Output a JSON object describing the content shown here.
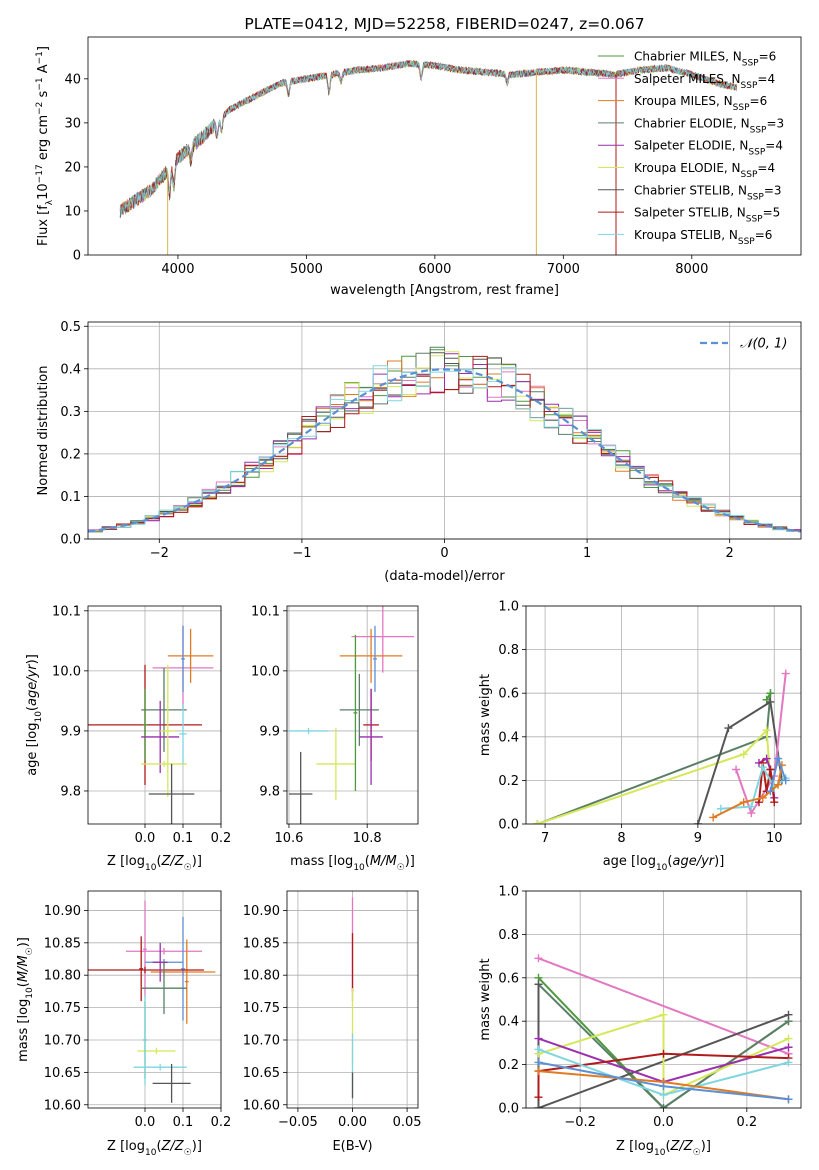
{
  "chart_data": [
    {
      "id": "spectrum",
      "type": "line",
      "title": "PLATE=0412, MJD=52258, FIBERID=0247, z=0.067",
      "xlabel": "wavelength [Angstrom, rest frame]",
      "ylabel": "Flux [f_λ10^-17 erg cm^-2 s^-1 A^-1]",
      "xlim": [
        3300,
        8850
      ],
      "ylim": [
        0,
        49.5
      ],
      "xticks": [
        4000,
        5000,
        6000,
        7000,
        8000
      ],
      "yticks": [
        0,
        10,
        20,
        30,
        40
      ],
      "grid": false,
      "legend_position": "top-right",
      "continuum_x": [
        3550,
        3800,
        4000,
        4200,
        4400,
        4600,
        4800,
        5000,
        5200,
        5400,
        5600,
        5800,
        6000,
        6200,
        6400,
        6600,
        6800,
        7000,
        7200,
        7400,
        7600,
        7800,
        8000,
        8200,
        8350
      ],
      "continuum_y": [
        10,
        15,
        22,
        27,
        33,
        36,
        39,
        40,
        41,
        42,
        42.5,
        43.5,
        43,
        42,
        41.5,
        41,
        41.5,
        42,
        41.5,
        41,
        42,
        42.5,
        41,
        39,
        38
      ],
      "series": [
        {
          "name": "Chabrier MILES, N_SSP=6",
          "label_main": "Chabrier MILES, N",
          "label_sub": "SSP",
          "label_tail": "=6",
          "color": "#4c9a3c"
        },
        {
          "name": "Salpeter MILES, N_SSP=4",
          "label_main": "Salpeter MILES, N",
          "label_sub": "SSP",
          "label_tail": "=4",
          "color": "#e377c2"
        },
        {
          "name": "Kroupa MILES, N_SSP=6",
          "label_main": "Kroupa MILES, N",
          "label_sub": "SSP",
          "label_tail": "=6",
          "color": "#e07b22"
        },
        {
          "name": "Chabrier ELODIE, N_SSP=3",
          "label_main": "Chabrier ELODIE, N",
          "label_sub": "SSP",
          "label_tail": "=3",
          "color": "#5b7f66"
        },
        {
          "name": "Salpeter ELODIE, N_SSP=4",
          "label_main": "Salpeter ELODIE, N",
          "label_sub": "SSP",
          "label_tail": "=4",
          "color": "#9b2fae"
        },
        {
          "name": "Kroupa ELODIE, N_SSP=4",
          "label_main": "Kroupa ELODIE, N",
          "label_sub": "SSP",
          "label_tail": "=4",
          "color": "#d4e85a"
        },
        {
          "name": "Chabrier STELIB, N_SSP=3",
          "label_main": "Chabrier STELIB, N",
          "label_sub": "SSP",
          "label_tail": "=3",
          "color": "#555555"
        },
        {
          "name": "Salpeter STELIB, N_SSP=5",
          "label_main": "Salpeter STELIB, N",
          "label_sub": "SSP",
          "label_tail": "=5",
          "color": "#b01a1a"
        },
        {
          "name": "Kroupa STELIB, N_SSP=6",
          "label_main": "Kroupa STELIB, N",
          "label_sub": "SSP",
          "label_tail": "=6",
          "color": "#7fd6e0"
        }
      ],
      "drops": [
        {
          "x": 3920,
          "color": "#d4b84a"
        },
        {
          "x": 6790,
          "color": "#d4b84a"
        },
        {
          "x": 7410,
          "color": "#b01a1a"
        }
      ]
    },
    {
      "id": "residuals",
      "type": "histogram",
      "xlabel": "(data-model)/error",
      "ylabel": "Normed distribution",
      "xlim": [
        -2.5,
        2.5
      ],
      "ylim": [
        0,
        0.51
      ],
      "xticks": [
        -2,
        -1,
        0,
        1,
        2
      ],
      "yticks": [
        0.0,
        0.1,
        0.2,
        0.3,
        0.4,
        0.5
      ],
      "grid": true,
      "legend_position": "top-right",
      "gaussian_label": "𝒩(0, 1)",
      "gaussian_color": "#5b8fd6",
      "bin_width": 0.1,
      "series_colors": [
        "#4c9a3c",
        "#e377c2",
        "#e07b22",
        "#5b7f66",
        "#9b2fae",
        "#d4e85a",
        "#555555",
        "#b01a1a",
        "#7fd6e0"
      ]
    },
    {
      "id": "age-vs-Z",
      "type": "errorbar",
      "xlabel": "Z [log10(Z/Z☉)]",
      "ylabel": "age [log10(age/yr)]",
      "xlim": [
        -0.15,
        0.2
      ],
      "ylim": [
        9.745,
        10.108
      ],
      "xticks": [
        0.0,
        0.1,
        0.2
      ],
      "yticks": [
        9.8,
        9.9,
        10.0,
        10.1
      ],
      "grid": true,
      "points": [
        {
          "x": 0.1,
          "y": 10.005,
          "xerr": 0.08,
          "yerr": 0.07,
          "color": "#e377c2"
        },
        {
          "x": 0.12,
          "y": 10.025,
          "xerr": 0.06,
          "yerr": 0.045,
          "color": "#e07b22"
        },
        {
          "x": 0.1,
          "y": 10.02,
          "xerr": 0.005,
          "yerr": 0.055,
          "color": "#5b8fd6"
        },
        {
          "x": 0.05,
          "y": 9.935,
          "xerr": 0.06,
          "yerr": 0.07,
          "color": "#5b7f66"
        },
        {
          "x": 0.0,
          "y": 9.91,
          "xerr": 0.15,
          "yerr": 0.1,
          "color": "#b01a1a"
        },
        {
          "x": 0.0,
          "y": 9.91,
          "xerr": 0.005,
          "yerr": 0.06,
          "color": "#4c9a3c"
        },
        {
          "x": 0.04,
          "y": 9.89,
          "xerr": 0.05,
          "yerr": 0.06,
          "color": "#9b2fae"
        },
        {
          "x": 0.06,
          "y": 9.9,
          "xerr": 0.02,
          "yerr": 0.11,
          "color": "#d4e85a"
        },
        {
          "x": 0.05,
          "y": 9.845,
          "xerr": 0.06,
          "yerr": 0.005,
          "color": "#d4e85a"
        },
        {
          "x": 0.07,
          "y": 9.795,
          "xerr": 0.06,
          "yerr": 0.05,
          "color": "#555555"
        },
        {
          "x": 0.1,
          "y": 9.895,
          "xerr": 0.01,
          "yerr": 0.05,
          "color": "#7fd6e0"
        }
      ]
    },
    {
      "id": "age-vs-mass",
      "type": "errorbar",
      "xlabel": "mass [log10(M/M☉)]",
      "xlim": [
        10.595,
        10.93
      ],
      "ylim": [
        9.745,
        10.108
      ],
      "xticks": [
        10.6,
        10.8
      ],
      "yticks": [
        9.8,
        9.9,
        10.0,
        10.1
      ],
      "grid": true,
      "points": [
        {
          "x": 10.84,
          "y": 10.057,
          "xerr": 0.08,
          "yerr": 0.06,
          "color": "#e377c2"
        },
        {
          "x": 10.81,
          "y": 10.025,
          "xerr": 0.08,
          "yerr": 0.045,
          "color": "#e07b22"
        },
        {
          "x": 10.82,
          "y": 10.02,
          "xerr": 0.005,
          "yerr": 0.055,
          "color": "#5b8fd6"
        },
        {
          "x": 10.78,
          "y": 9.935,
          "xerr": 0.05,
          "yerr": 0.06,
          "color": "#5b7f66"
        },
        {
          "x": 10.81,
          "y": 9.91,
          "xerr": 0.02,
          "yerr": 0.06,
          "color": "#b01a1a"
        },
        {
          "x": 10.81,
          "y": 9.89,
          "xerr": 0.03,
          "yerr": 0.08,
          "color": "#9b2fae"
        },
        {
          "x": 10.72,
          "y": 9.845,
          "xerr": 0.05,
          "yerr": 0.06,
          "color": "#d4e85a"
        },
        {
          "x": 10.65,
          "y": 9.9,
          "xerr": 0.05,
          "yerr": 0.005,
          "color": "#7fd6e0"
        },
        {
          "x": 10.63,
          "y": 9.795,
          "xerr": 0.03,
          "yerr": 0.07,
          "color": "#555555"
        },
        {
          "x": 10.77,
          "y": 9.93,
          "xerr": 0.005,
          "yerr": 0.13,
          "color": "#4c9a3c"
        }
      ]
    },
    {
      "id": "weight-vs-age",
      "type": "line",
      "xlabel": "age [log10(age/yr)]",
      "ylabel": "mass weight",
      "xlim": [
        6.75,
        10.35
      ],
      "ylim": [
        0,
        1.0
      ],
      "xticks": [
        7,
        8,
        9,
        10
      ],
      "yticks": [
        0.0,
        0.2,
        0.4,
        0.6,
        0.8,
        1.0
      ],
      "grid": true,
      "series": [
        {
          "color": "#5b7f66",
          "x": [
            6.9,
            9.9,
            9.95
          ],
          "y": [
            0.0,
            0.4,
            0.6
          ]
        },
        {
          "color": "#4c9a3c",
          "x": [
            9.9,
            9.95
          ],
          "y": [
            0.57,
            0.6
          ]
        },
        {
          "color": "#d4e85a",
          "x": [
            6.9,
            9.6,
            9.9,
            9.95
          ],
          "y": [
            0.0,
            0.32,
            0.43,
            0.2
          ]
        },
        {
          "color": "#555555",
          "x": [
            9.0,
            9.4,
            9.95,
            10.1
          ],
          "y": [
            0.0,
            0.44,
            0.56,
            0.2
          ]
        },
        {
          "color": "#e377c2",
          "x": [
            9.5,
            9.7,
            10.0,
            10.15
          ],
          "y": [
            0.25,
            0.05,
            0.22,
            0.69
          ]
        },
        {
          "color": "#9b2fae",
          "x": [
            9.8,
            9.9,
            9.95,
            10.0
          ],
          "y": [
            0.28,
            0.3,
            0.25,
            0.12
          ]
        },
        {
          "color": "#b01a1a",
          "x": [
            9.8,
            9.85,
            9.9,
            9.95,
            10.0
          ],
          "y": [
            0.1,
            0.28,
            0.15,
            0.25,
            0.1
          ]
        },
        {
          "color": "#7fd6e0",
          "x": [
            9.3,
            9.7,
            9.85,
            10.0,
            10.15
          ],
          "y": [
            0.07,
            0.08,
            0.26,
            0.17,
            0.21
          ]
        },
        {
          "color": "#e07b22",
          "x": [
            9.2,
            9.6,
            9.85,
            10.05,
            10.1
          ],
          "y": [
            0.03,
            0.1,
            0.12,
            0.18,
            0.27
          ]
        },
        {
          "color": "#5b8fd6",
          "x": [
            9.95,
            10.05,
            10.15
          ],
          "y": [
            0.15,
            0.3,
            0.2
          ]
        }
      ]
    },
    {
      "id": "mass-vs-Z",
      "type": "errorbar",
      "xlabel": "Z [log10(Z/Z☉)]",
      "ylabel": "mass [log10(M/M☉)]",
      "xlim": [
        -0.15,
        0.2
      ],
      "ylim": [
        10.595,
        10.93
      ],
      "xticks": [
        0.0,
        0.1,
        0.2
      ],
      "yticks": [
        10.6,
        10.65,
        10.7,
        10.75,
        10.8,
        10.85,
        10.9
      ],
      "grid": true,
      "points": [
        {
          "x": 0.05,
          "y": 10.837,
          "xerr": 0.1,
          "yerr": 0.005,
          "color": "#e377c2"
        },
        {
          "x": 0.0,
          "y": 10.84,
          "xerr": 0.005,
          "yerr": 0.075,
          "color": "#e377c2"
        },
        {
          "x": 0.1,
          "y": 10.805,
          "xerr": 0.085,
          "yerr": 0.005,
          "color": "#e07b22"
        },
        {
          "x": 0.11,
          "y": 10.79,
          "xerr": 0.005,
          "yerr": 0.065,
          "color": "#e07b22"
        },
        {
          "x": 0.05,
          "y": 10.82,
          "xerr": 0.05,
          "yerr": 0.005,
          "color": "#5b8fd6"
        },
        {
          "x": 0.1,
          "y": 10.81,
          "xerr": 0.005,
          "yerr": 0.08,
          "color": "#5b8fd6"
        },
        {
          "x": 0.0,
          "y": 10.808,
          "xerr": 0.155,
          "yerr": 0.005,
          "color": "#b01a1a"
        },
        {
          "x": -0.01,
          "y": 10.81,
          "xerr": 0.005,
          "yerr": 0.05,
          "color": "#b01a1a"
        },
        {
          "x": 0.05,
          "y": 10.78,
          "xerr": 0.06,
          "yerr": 0.04,
          "color": "#5b7f66"
        },
        {
          "x": 0.04,
          "y": 10.82,
          "xerr": 0.02,
          "yerr": 0.03,
          "color": "#9b2fae"
        },
        {
          "x": 0.03,
          "y": 10.683,
          "xerr": 0.05,
          "yerr": 0.005,
          "color": "#d4e85a"
        },
        {
          "x": 0.0,
          "y": 10.7,
          "xerr": 0.005,
          "yerr": 0.06,
          "color": "#4c9a3c"
        },
        {
          "x": 0.04,
          "y": 10.658,
          "xerr": 0.07,
          "yerr": 0.005,
          "color": "#7fd6e0"
        },
        {
          "x": 0.0,
          "y": 10.7,
          "xerr": 0.005,
          "yerr": 0.07,
          "color": "#7fd6e0"
        },
        {
          "x": 0.07,
          "y": 10.633,
          "xerr": 0.05,
          "yerr": 0.03,
          "color": "#555555"
        }
      ]
    },
    {
      "id": "mass-vs-ebv",
      "type": "errorbar",
      "xlabel": "E(B-V)",
      "xlim": [
        -0.06,
        0.06
      ],
      "ylim": [
        10.595,
        10.93
      ],
      "xticks": [
        -0.05,
        0.0,
        0.05
      ],
      "yticks": [
        10.6,
        10.65,
        10.7,
        10.75,
        10.8,
        10.85,
        10.9
      ],
      "grid": true,
      "points": [
        {
          "x": 0.0,
          "y": 10.84,
          "xerr": 0.0,
          "yerr": 0.08,
          "color": "#e377c2"
        },
        {
          "x": 0.0,
          "y": 10.82,
          "xerr": 0.0,
          "yerr": 0.045,
          "color": "#b01a1a"
        },
        {
          "x": 0.0,
          "y": 10.72,
          "xerr": 0.0,
          "yerr": 0.06,
          "color": "#d4e85a"
        },
        {
          "x": 0.0,
          "y": 10.66,
          "xerr": 0.0,
          "yerr": 0.05,
          "color": "#7fd6e0"
        },
        {
          "x": 0.0,
          "y": 10.63,
          "xerr": 0.0,
          "yerr": 0.02,
          "color": "#555555"
        }
      ]
    },
    {
      "id": "weight-vs-Z",
      "type": "line",
      "xlabel": "Z [log10(Z/Z☉)]",
      "ylabel": "mass weight",
      "xlim": [
        -0.33,
        0.33
      ],
      "ylim": [
        0,
        1.0
      ],
      "xticks": [
        -0.2,
        0.0,
        0.2
      ],
      "yticks": [
        0.0,
        0.2,
        0.4,
        0.6,
        0.8,
        1.0
      ],
      "grid": true,
      "series": [
        {
          "color": "#e377c2",
          "x": [
            -0.3,
            0.3
          ],
          "y": [
            0.69,
            0.25
          ]
        },
        {
          "color": "#4c9a3c",
          "x": [
            -0.3,
            0.0,
            0.3
          ],
          "y": [
            0.6,
            0.0,
            0.4
          ]
        },
        {
          "color": "#5b7f66",
          "x": [
            -0.3,
            0.0,
            0.3
          ],
          "y": [
            0.57,
            0.0,
            0.4
          ]
        },
        {
          "color": "#555555",
          "x": [
            -0.3,
            -0.3,
            0.3
          ],
          "y": [
            0.57,
            0.0,
            0.43
          ]
        },
        {
          "color": "#d4e85a",
          "x": [
            -0.3,
            0.0,
            0.0,
            0.3
          ],
          "y": [
            0.25,
            0.43,
            0.06,
            0.32
          ]
        },
        {
          "color": "#9b2fae",
          "x": [
            -0.3,
            0.0,
            0.3
          ],
          "y": [
            0.32,
            0.12,
            0.28
          ]
        },
        {
          "color": "#b01a1a",
          "x": [
            -0.3,
            -0.3,
            0.0,
            0.3
          ],
          "y": [
            0.05,
            0.17,
            0.25,
            0.23
          ]
        },
        {
          "color": "#7fd6e0",
          "x": [
            -0.3,
            0.0,
            0.3
          ],
          "y": [
            0.27,
            0.06,
            0.21
          ]
        },
        {
          "color": "#e07b22",
          "x": [
            -0.3,
            0.0,
            0.3
          ],
          "y": [
            0.17,
            0.12,
            0.04
          ]
        },
        {
          "color": "#5b8fd6",
          "x": [
            -0.3,
            0.0,
            0.3
          ],
          "y": [
            0.21,
            0.1,
            0.04
          ]
        }
      ]
    }
  ]
}
